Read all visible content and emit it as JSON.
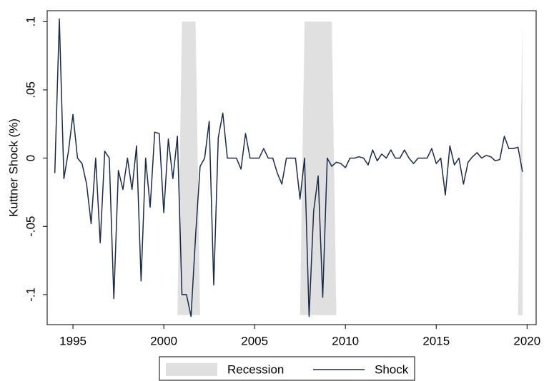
{
  "chart_data": {
    "type": "line",
    "y_label": "Kuttner Shock (%)",
    "xlim": [
      1993.58,
      2020.5
    ],
    "xticks": [
      1995,
      2000,
      2005,
      2010,
      2015,
      2020
    ],
    "ylim": [
      -0.122,
      0.108
    ],
    "yticks": [
      {
        "value": 0.1,
        "label": ".1"
      },
      {
        "value": 0.05,
        "label": ".05"
      },
      0,
      {
        "value": -0.05,
        "label": "-.05"
      },
      {
        "value": -0.1,
        "label": "-.1"
      }
    ],
    "legend": "bottom",
    "series": [
      {
        "name": "Recession",
        "type": "area",
        "color": "#e0e0e0",
        "x": [
          2000.75,
          2001.0,
          2001.75,
          2002.0,
          null,
          2007.5,
          2007.75,
          2009.25,
          2009.5,
          null,
          2019.5,
          2019.75,
          2019.75
        ],
        "values": [
          -0.115,
          0.1,
          0.1,
          -0.115,
          null,
          -0.115,
          0.1,
          0.1,
          -0.115,
          null,
          -0.115,
          0.1,
          -0.115
        ]
      },
      {
        "name": "Shock",
        "type": "line",
        "color": "#1b2a4a",
        "x": [
          1994,
          1994.25,
          1994.5,
          1994.75,
          1995,
          1995.25,
          1995.5,
          1995.75,
          1996,
          1996.25,
          1996.5,
          1996.75,
          1997,
          1997.25,
          1997.5,
          1997.75,
          1998,
          1998.25,
          1998.5,
          1998.75,
          1999,
          1999.25,
          1999.5,
          1999.75,
          2000,
          2000.25,
          2000.5,
          2000.75,
          2001,
          2001.25,
          2001.5,
          2001.75,
          2002,
          2002.25,
          2002.5,
          2002.75,
          2003,
          2003.25,
          2003.5,
          2003.75,
          2004,
          2004.25,
          2004.5,
          2004.75,
          2005,
          2005.25,
          2005.5,
          2005.75,
          2006,
          2006.25,
          2006.5,
          2006.75,
          2007,
          2007.25,
          2007.5,
          2007.75,
          2008,
          2008.25,
          2008.5,
          2008.75,
          2009,
          2009.25,
          2009.5,
          2009.75,
          2010,
          2010.25,
          2010.5,
          2010.75,
          2011,
          2011.25,
          2011.5,
          2011.75,
          2012,
          2012.25,
          2012.5,
          2012.75,
          2013,
          2013.25,
          2013.5,
          2013.75,
          2014,
          2014.25,
          2014.5,
          2014.75,
          2015,
          2015.25,
          2015.5,
          2015.75,
          2016,
          2016.25,
          2016.5,
          2016.75,
          2017,
          2017.25,
          2017.5,
          2017.75,
          2018,
          2018.25,
          2018.5,
          2018.75,
          2019,
          2019.25,
          2019.5,
          2019.75
        ],
        "values": [
          -0.011,
          0.102,
          -0.015,
          0.005,
          0.032,
          0,
          -0.004,
          -0.019,
          -0.048,
          0,
          -0.062,
          0.005,
          0,
          -0.103,
          -0.009,
          -0.023,
          0,
          -0.023,
          0.009,
          -0.09,
          0,
          -0.036,
          0.019,
          0.018,
          -0.04,
          0.014,
          -0.015,
          0.016,
          -0.1,
          -0.1,
          -0.116,
          -0.057,
          -0.006,
          0,
          0.027,
          -0.093,
          0.015,
          0.033,
          0,
          0,
          0,
          -0.008,
          0.018,
          0,
          0,
          0,
          0.007,
          0,
          0,
          -0.011,
          -0.019,
          0,
          0,
          0,
          -0.03,
          0,
          -0.116,
          -0.039,
          -0.013,
          -0.102,
          0,
          -0.006,
          -0.003,
          -0.004,
          -0.007,
          0,
          0,
          0.001,
          0,
          -0.005,
          0.006,
          -0.002,
          0.003,
          0,
          0.006,
          0,
          0,
          0.006,
          0,
          -0.004,
          0,
          0,
          0,
          0.007,
          -0.004,
          0,
          -0.027,
          0.009,
          -0.005,
          0,
          -0.019,
          -0.003,
          0.001,
          0.004,
          0,
          0.002,
          0.001,
          -0.002,
          -0.001,
          0.016,
          0.007,
          0.007,
          0.008,
          -0.01
        ]
      }
    ]
  }
}
